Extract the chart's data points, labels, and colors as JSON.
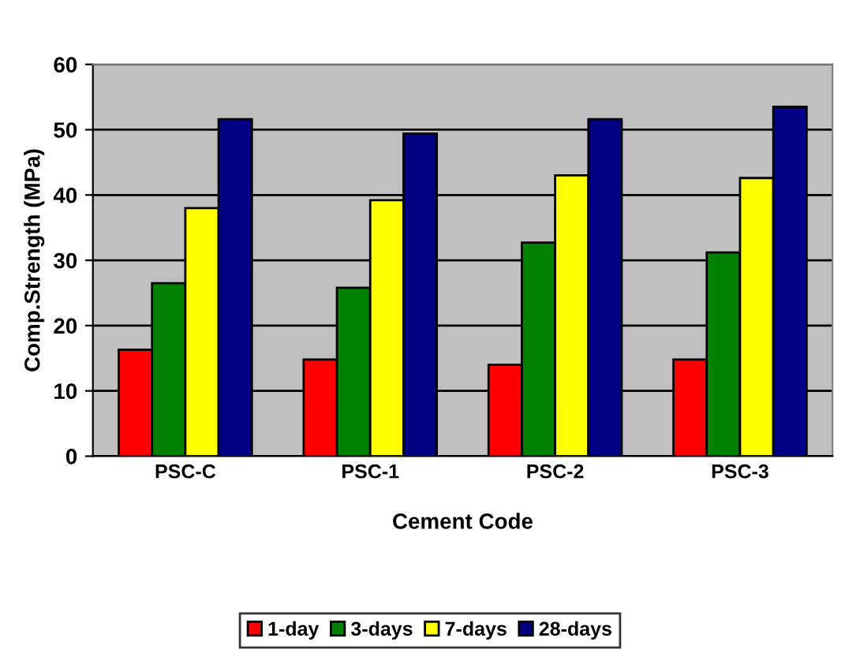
{
  "chart_data": {
    "type": "bar",
    "xlabel": "Cement Code",
    "ylabel": "Comp.Strength (MPa)",
    "categories": [
      "PSC-C",
      "PSC-1",
      "PSC-2",
      "PSC-3"
    ],
    "series": [
      {
        "name": "1-day",
        "color": "#ff0000",
        "values": [
          16.3,
          14.8,
          14,
          14.8
        ]
      },
      {
        "name": "3-days",
        "color": "#008000",
        "values": [
          26.5,
          25.8,
          32.7,
          31.2
        ]
      },
      {
        "name": "7-days",
        "color": "#ffff00",
        "values": [
          38,
          39.2,
          43,
          42.6
        ]
      },
      {
        "name": "28-days",
        "color": "#000080",
        "values": [
          51.6,
          49.4,
          51.6,
          53.5
        ]
      }
    ],
    "ylim": [
      0,
      60
    ],
    "yticks": [
      0,
      10,
      20,
      30,
      40,
      50,
      60
    ],
    "grid": "y",
    "legend": "bottom"
  }
}
